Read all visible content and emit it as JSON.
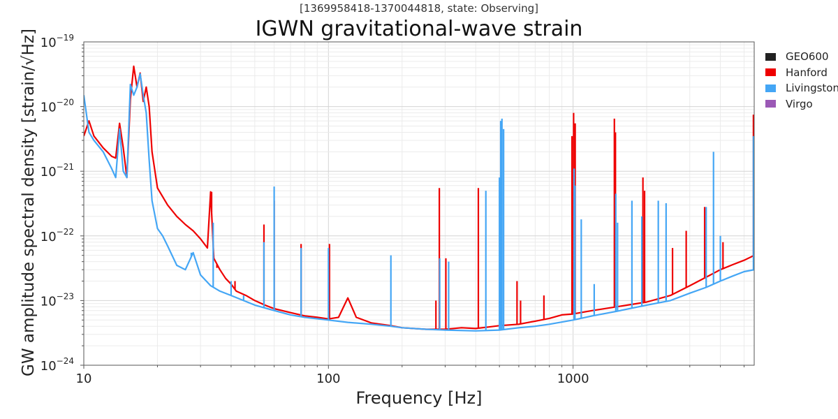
{
  "chart_data": {
    "type": "line",
    "title": "IGWN gravitational-wave strain",
    "subtitle": "[1369958418-1370044818, state: Observing]",
    "xlabel": "Frequency [Hz]",
    "ylabel": "GW amplitude spectral density [strain/√Hz]",
    "x_scale": "log",
    "y_scale": "log",
    "xlim": [
      10,
      5500
    ],
    "ylim": [
      1e-24,
      1e-19
    ],
    "x_ticks": [
      {
        "value": 10,
        "label": "10"
      },
      {
        "value": 100,
        "label": "100"
      },
      {
        "value": 1000,
        "label": "1000"
      }
    ],
    "y_ticks": [
      {
        "value": 1e-19,
        "base": "10",
        "exp": "−19"
      },
      {
        "value": 1e-20,
        "base": "10",
        "exp": "−20"
      },
      {
        "value": 1e-21,
        "base": "10",
        "exp": "−21"
      },
      {
        "value": 1e-22,
        "base": "10",
        "exp": "−22"
      },
      {
        "value": 1e-23,
        "base": "10",
        "exp": "−23"
      },
      {
        "value": 1e-24,
        "base": "10",
        "exp": "−24"
      }
    ],
    "grid": true,
    "legend_position": "right",
    "series": [
      {
        "name": "GEO600",
        "color": "#222222",
        "points": []
      },
      {
        "name": "Hanford",
        "color": "#ee0000",
        "points": [
          [
            10,
            3.5e-21
          ],
          [
            10.5,
            6e-21
          ],
          [
            11,
            3.5e-21
          ],
          [
            12,
            2.3e-21
          ],
          [
            13,
            1.7e-21
          ],
          [
            13.5,
            1.6e-21
          ],
          [
            14,
            5.5e-21
          ],
          [
            14.5,
            2.3e-21
          ],
          [
            15,
            8e-22
          ],
          [
            15.5,
            1.3e-20
          ],
          [
            16,
            4.2e-20
          ],
          [
            16.5,
            2e-20
          ],
          [
            17,
            3.3e-20
          ],
          [
            17.5,
            1.2e-20
          ],
          [
            18,
            2e-20
          ],
          [
            18.5,
            1e-20
          ],
          [
            19,
            2e-21
          ],
          [
            20,
            5.5e-22
          ],
          [
            22,
            3e-22
          ],
          [
            24,
            2e-22
          ],
          [
            26,
            1.5e-22
          ],
          [
            28,
            1.2e-22
          ],
          [
            30,
            9e-23
          ],
          [
            32,
            6.5e-23
          ],
          [
            33,
            4.8e-22
          ],
          [
            34,
            4.5e-23
          ],
          [
            36,
            3e-23
          ],
          [
            38,
            2.2e-23
          ],
          [
            40,
            1.8e-23
          ],
          [
            42,
            1.4e-23
          ],
          [
            46,
            1.2e-23
          ],
          [
            50,
            1e-23
          ],
          [
            55,
            8.5e-24
          ],
          [
            60,
            7.5e-24
          ],
          [
            70,
            6.5e-24
          ],
          [
            80,
            5.8e-24
          ],
          [
            90,
            5.5e-24
          ],
          [
            100,
            5.2e-24
          ],
          [
            110,
            5.5e-24
          ],
          [
            120,
            1.1e-23
          ],
          [
            130,
            5.5e-24
          ],
          [
            150,
            4.5e-24
          ],
          [
            180,
            4.1e-24
          ],
          [
            200,
            3.8e-24
          ],
          [
            250,
            3.6e-24
          ],
          [
            300,
            3.6e-24
          ],
          [
            350,
            3.8e-24
          ],
          [
            400,
            3.7e-24
          ],
          [
            450,
            3.9e-24
          ],
          [
            500,
            4.1e-24
          ],
          [
            600,
            4.3e-24
          ],
          [
            700,
            4.8e-24
          ],
          [
            800,
            5.3e-24
          ],
          [
            900,
            6e-24
          ],
          [
            1000,
            6.2e-24
          ],
          [
            1200,
            7e-24
          ],
          [
            1500,
            8e-24
          ],
          [
            2000,
            9.5e-24
          ],
          [
            2500,
            1.2e-23
          ],
          [
            3000,
            1.7e-23
          ],
          [
            3500,
            2.3e-23
          ],
          [
            4000,
            3e-23
          ],
          [
            4500,
            3.6e-23
          ],
          [
            5000,
            4.2e-23
          ],
          [
            5500,
            5e-23
          ]
        ]
      },
      {
        "name": "Livingston",
        "color": "#44a6f5",
        "points": [
          [
            10,
            1.5e-20
          ],
          [
            10.5,
            4e-21
          ],
          [
            11,
            3e-21
          ],
          [
            12,
            2e-21
          ],
          [
            13,
            1.1e-21
          ],
          [
            13.5,
            8e-22
          ],
          [
            14,
            4.5e-21
          ],
          [
            14.5,
            1e-21
          ],
          [
            15,
            8e-22
          ],
          [
            15.5,
            2.2e-20
          ],
          [
            16,
            1.5e-20
          ],
          [
            16.5,
            2e-20
          ],
          [
            17,
            3.2e-20
          ],
          [
            17.5,
            1.5e-20
          ],
          [
            18,
            8e-21
          ],
          [
            18.5,
            1.5e-21
          ],
          [
            19,
            3.5e-22
          ],
          [
            20,
            1.3e-22
          ],
          [
            21,
            1e-22
          ],
          [
            22,
            7e-23
          ],
          [
            24,
            3.5e-23
          ],
          [
            26,
            3e-23
          ],
          [
            28,
            5.5e-23
          ],
          [
            30,
            2.5e-23
          ],
          [
            33,
            1.7e-23
          ],
          [
            36,
            1.4e-23
          ],
          [
            40,
            1.2e-23
          ],
          [
            45,
            1e-23
          ],
          [
            50,
            8.5e-24
          ],
          [
            60,
            7e-24
          ],
          [
            70,
            6e-24
          ],
          [
            80,
            5.5e-24
          ],
          [
            100,
            5e-24
          ],
          [
            120,
            4.6e-24
          ],
          [
            150,
            4.3e-24
          ],
          [
            180,
            4e-24
          ],
          [
            200,
            3.8e-24
          ],
          [
            250,
            3.6e-24
          ],
          [
            300,
            3.5e-24
          ],
          [
            400,
            3.4e-24
          ],
          [
            500,
            3.5e-24
          ],
          [
            600,
            3.8e-24
          ],
          [
            700,
            4e-24
          ],
          [
            800,
            4.3e-24
          ],
          [
            1000,
            5e-24
          ],
          [
            1200,
            5.8e-24
          ],
          [
            1500,
            6.8e-24
          ],
          [
            2000,
            8.5e-24
          ],
          [
            2500,
            1e-23
          ],
          [
            3000,
            1.3e-23
          ],
          [
            3500,
            1.6e-23
          ],
          [
            4000,
            2e-23
          ],
          [
            4500,
            2.4e-23
          ],
          [
            5000,
            2.8e-23
          ],
          [
            5500,
            3e-23
          ]
        ]
      },
      {
        "name": "Virgo",
        "color": "#9b59b6",
        "points": []
      }
    ],
    "spectral_lines": [
      {
        "series": "Hanford",
        "freq": 33.3,
        "peak": 4.8e-22
      },
      {
        "series": "Hanford",
        "freq": 35.0,
        "peak": 3.2e-23
      },
      {
        "series": "Hanford",
        "freq": 41.5,
        "peak": 2e-23
      },
      {
        "series": "Hanford",
        "freq": 54.5,
        "peak": 1.5e-22
      },
      {
        "series": "Hanford",
        "freq": 60.0,
        "peak": 3.5e-22
      },
      {
        "series": "Hanford",
        "freq": 77.3,
        "peak": 7.5e-23
      },
      {
        "series": "Hanford",
        "freq": 101.0,
        "peak": 7.5e-23
      },
      {
        "series": "Hanford",
        "freq": 275.0,
        "peak": 1e-23
      },
      {
        "series": "Hanford",
        "freq": 284.0,
        "peak": 5.5e-22
      },
      {
        "series": "Hanford",
        "freq": 302.0,
        "peak": 4.5e-23
      },
      {
        "series": "Hanford",
        "freq": 410.0,
        "peak": 5.5e-22
      },
      {
        "series": "Hanford",
        "freq": 505.0,
        "peak": 1e-23
      },
      {
        "series": "Hanford",
        "freq": 590.0,
        "peak": 2e-23
      },
      {
        "series": "Hanford",
        "freq": 610.0,
        "peak": 1e-23
      },
      {
        "series": "Hanford",
        "freq": 760.0,
        "peak": 1.2e-23
      },
      {
        "series": "Hanford",
        "freq": 990.0,
        "peak": 3.5e-21
      },
      {
        "series": "Hanford",
        "freq": 1005.0,
        "peak": 8e-21
      },
      {
        "series": "Hanford",
        "freq": 1020.0,
        "peak": 5.5e-21
      },
      {
        "series": "Hanford",
        "freq": 1475.0,
        "peak": 6.5e-21
      },
      {
        "series": "Hanford",
        "freq": 1490.0,
        "peak": 4e-21
      },
      {
        "series": "Hanford",
        "freq": 1930.0,
        "peak": 8e-22
      },
      {
        "series": "Hanford",
        "freq": 1960.0,
        "peak": 5e-22
      },
      {
        "series": "Hanford",
        "freq": 2550.0,
        "peak": 6.5e-23
      },
      {
        "series": "Hanford",
        "freq": 2900.0,
        "peak": 1.2e-22
      },
      {
        "series": "Hanford",
        "freq": 3450.0,
        "peak": 2.8e-22
      },
      {
        "series": "Hanford",
        "freq": 4100.0,
        "peak": 8e-23
      },
      {
        "series": "Hanford",
        "freq": 5460.0,
        "peak": 7.5e-21
      },
      {
        "series": "Livingston",
        "freq": 27.5,
        "peak": 5.5e-23
      },
      {
        "series": "Livingston",
        "freq": 33.8,
        "peak": 1.6e-22
      },
      {
        "series": "Livingston",
        "freq": 40.0,
        "peak": 2e-23
      },
      {
        "series": "Livingston",
        "freq": 45.0,
        "peak": 1.2e-23
      },
      {
        "series": "Livingston",
        "freq": 54.5,
        "peak": 8e-23
      },
      {
        "series": "Livingston",
        "freq": 60.0,
        "peak": 5.8e-22
      },
      {
        "series": "Livingston",
        "freq": 77.3,
        "peak": 6.5e-23
      },
      {
        "series": "Livingston",
        "freq": 100.0,
        "peak": 6.5e-23
      },
      {
        "series": "Livingston",
        "freq": 180.0,
        "peak": 5e-23
      },
      {
        "series": "Livingston",
        "freq": 285.0,
        "peak": 4.5e-23
      },
      {
        "series": "Livingston",
        "freq": 310.0,
        "peak": 4e-23
      },
      {
        "series": "Livingston",
        "freq": 440.0,
        "peak": 5e-22
      },
      {
        "series": "Livingston",
        "freq": 500.0,
        "peak": 8e-22
      },
      {
        "series": "Livingston",
        "freq": 506.0,
        "peak": 6e-21
      },
      {
        "series": "Livingston",
        "freq": 512.0,
        "peak": 6.5e-21
      },
      {
        "series": "Livingston",
        "freq": 520.0,
        "peak": 4.5e-21
      },
      {
        "series": "Livingston",
        "freq": 1010.0,
        "peak": 1.1e-21
      },
      {
        "series": "Livingston",
        "freq": 1018.0,
        "peak": 6e-22
      },
      {
        "series": "Livingston",
        "freq": 1080.0,
        "peak": 1.8e-22
      },
      {
        "series": "Livingston",
        "freq": 1220.0,
        "peak": 1.8e-23
      },
      {
        "series": "Livingston",
        "freq": 1495.0,
        "peak": 4.5e-22
      },
      {
        "series": "Livingston",
        "freq": 1520.0,
        "peak": 1.6e-22
      },
      {
        "series": "Livingston",
        "freq": 1740.0,
        "peak": 3.5e-22
      },
      {
        "series": "Livingston",
        "freq": 1910.0,
        "peak": 2e-22
      },
      {
        "series": "Livingston",
        "freq": 2230.0,
        "peak": 3.5e-22
      },
      {
        "series": "Livingston",
        "freq": 2400.0,
        "peak": 3.2e-22
      },
      {
        "series": "Livingston",
        "freq": 3500.0,
        "peak": 2.8e-22
      },
      {
        "series": "Livingston",
        "freq": 3750.0,
        "peak": 2e-21
      },
      {
        "series": "Livingston",
        "freq": 4000.0,
        "peak": 1e-22
      },
      {
        "series": "Livingston",
        "freq": 5460.0,
        "peak": 3.5e-21
      }
    ]
  },
  "legend": {
    "items": [
      {
        "label": "GEO600",
        "color": "#222222"
      },
      {
        "label": "Hanford",
        "color": "#ee0000"
      },
      {
        "label": "Livingston",
        "color": "#44a6f5"
      },
      {
        "label": "Virgo",
        "color": "#9b59b6"
      }
    ]
  }
}
